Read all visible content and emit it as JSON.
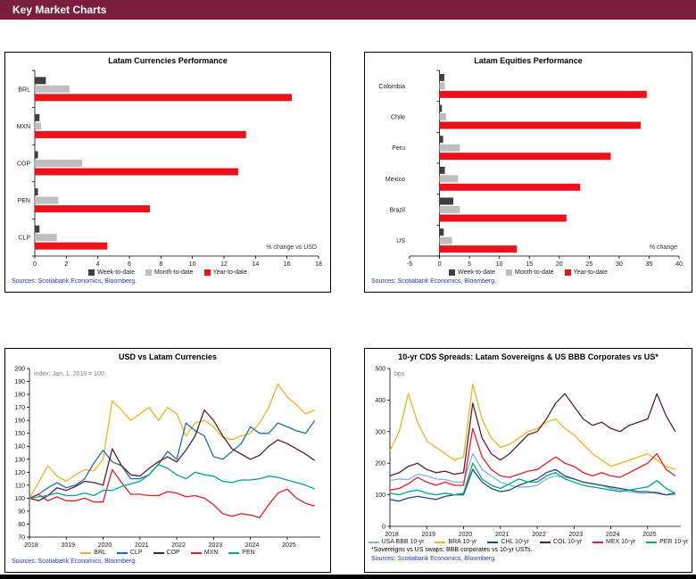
{
  "page": {
    "header_title": "Key Market Charts"
  },
  "colors": {
    "header_bg": "#7a1f3d",
    "sources_text": "#2638b8",
    "bar_red": "#ec111a",
    "bar_dark_gray": "#404040",
    "bar_light_gray": "#bfbfbf"
  },
  "chart_data": [
    {
      "type": "bar",
      "orientation": "horizontal",
      "title": "Latam Currencies Performance",
      "axis_note": "% change vs USD",
      "sources": "Sources: Scotiabank Economics, Bloomberg.",
      "categories": [
        "BRL",
        "MXN",
        "COP",
        "PEN",
        "CLP"
      ],
      "xlim": [
        0,
        18
      ],
      "xticks": [
        0,
        2,
        4,
        6,
        8,
        10,
        12,
        14,
        16,
        18
      ],
      "margin_left": 30,
      "series": [
        {
          "name": "Week-to-date",
          "color": "#404040",
          "values": [
            0.7,
            0.3,
            0.2,
            0.2,
            0.3
          ]
        },
        {
          "name": "Month-to-date",
          "color": "#bfbfbf",
          "values": [
            2.2,
            0.4,
            3.0,
            1.5,
            1.4
          ]
        },
        {
          "name": "Year-to-date",
          "color": "#ec111a",
          "values": [
            16.3,
            13.4,
            12.9,
            7.3,
            4.6
          ]
        }
      ]
    },
    {
      "type": "bar",
      "orientation": "horizontal",
      "title": "Latam Equities Performance",
      "axis_note": "% change",
      "sources": "Sources: Scotiabank Economics, Bloomberg.",
      "categories": [
        "Colombia",
        "Chile",
        "Peru",
        "Mexico",
        "Brazil",
        "US"
      ],
      "xlim": [
        -5,
        40
      ],
      "xticks": [
        -5,
        0,
        5,
        10,
        15,
        20,
        25,
        30,
        35,
        40
      ],
      "margin_left": 46,
      "series": [
        {
          "name": "Week-to-date",
          "color": "#404040",
          "values": [
            0.8,
            0.4,
            0.6,
            0.9,
            2.3,
            0.7
          ]
        },
        {
          "name": "Month-to-date",
          "color": "#bfbfbf",
          "values": [
            0.9,
            1.1,
            3.4,
            3.1,
            3.4,
            2.1
          ]
        },
        {
          "name": "Year-to-date",
          "color": "#ec111a",
          "values": [
            34.6,
            33.6,
            28.6,
            23.5,
            21.2,
            12.9
          ]
        }
      ]
    },
    {
      "type": "line",
      "title": "USD vs Latam Currencies",
      "unit_note": "index, Jan. 1, 2018 = 100",
      "sources": "Sources: Scotiabank Economics, Bloomberg.",
      "x_start": 2018,
      "x_step": 0.25,
      "xlim": [
        2018,
        2025.9
      ],
      "xticks": [
        2018,
        2019,
        2020,
        2021,
        2022,
        2023,
        2024,
        2025
      ],
      "ylim": [
        70,
        200
      ],
      "yticks": [
        70,
        80,
        90,
        100,
        110,
        120,
        130,
        140,
        150,
        160,
        170,
        180,
        190,
        200
      ],
      "series": [
        {
          "name": "BRL",
          "color": "#f0b41e",
          "values": [
            100,
            112,
            125,
            117,
            113,
            118,
            122,
            121,
            130,
            175,
            168,
            160,
            165,
            170,
            160,
            170,
            165,
            148,
            158,
            160,
            155,
            147,
            145,
            148,
            150,
            158,
            170,
            188,
            178,
            172,
            165,
            168
          ]
        },
        {
          "name": "CLP",
          "color": "#1f6fa6",
          "values": [
            100,
            103,
            108,
            112,
            108,
            110,
            115,
            127,
            137,
            128,
            125,
            115,
            115,
            118,
            126,
            136,
            130,
            158,
            152,
            148,
            132,
            130,
            136,
            142,
            155,
            150,
            150,
            158,
            155,
            152,
            150,
            160
          ]
        },
        {
          "name": "COP",
          "color": "#5a1f2f",
          "values": [
            100,
            98,
            102,
            108,
            106,
            109,
            113,
            112,
            110,
            138,
            125,
            118,
            117,
            123,
            128,
            132,
            128,
            137,
            148,
            168,
            160,
            148,
            138,
            134,
            130,
            133,
            140,
            145,
            142,
            138,
            134,
            129
          ]
        },
        {
          "name": "MXN",
          "color": "#ec1c24",
          "values": [
            100,
            103,
            98,
            101,
            98,
            98,
            100,
            97,
            97,
            122,
            112,
            103,
            103,
            102,
            102,
            105,
            104,
            101,
            102,
            100,
            95,
            88,
            86,
            88,
            87,
            85,
            95,
            104,
            107,
            100,
            96,
            94
          ]
        },
        {
          "name": "PEN",
          "color": "#00a886",
          "values": [
            100,
            101,
            102,
            104,
            102,
            102,
            104,
            102,
            106,
            106,
            109,
            111,
            113,
            118,
            126,
            123,
            118,
            115,
            120,
            118,
            117,
            113,
            112,
            114,
            114,
            115,
            117,
            116,
            114,
            112,
            110,
            107
          ]
        }
      ]
    },
    {
      "type": "line",
      "title": "10-yr CDS Spreads: Latam Sovereigns & US BBB Corporates vs US*",
      "unit_note": "bps",
      "footnote": "*Sovereigns vs US swaps; BBB corporates vs 10-yr USTs.",
      "sources": "Sources: Scotiabank Economics, Bloomberg.",
      "x_start": 2018,
      "x_step": 0.25,
      "xlim": [
        2018,
        2025.9
      ],
      "xticks": [
        2018,
        2019,
        2020,
        2021,
        2022,
        2023,
        2024,
        2025
      ],
      "ylim": [
        0,
        500
      ],
      "yticks": [
        0,
        100,
        200,
        300,
        400,
        500
      ],
      "series": [
        {
          "name": "USA BBB 10-yr",
          "color": "#7fb2de",
          "values": [
            145,
            150,
            148,
            165,
            160,
            150,
            148,
            140,
            140,
            230,
            180,
            160,
            140,
            130,
            125,
            125,
            130,
            150,
            160,
            155,
            150,
            140,
            135,
            130,
            120,
            115,
            110,
            105,
            105,
            110,
            100,
            100
          ]
        },
        {
          "name": "BRA 10-yr",
          "color": "#f0b41e",
          "values": [
            240,
            300,
            420,
            330,
            270,
            250,
            230,
            210,
            220,
            450,
            340,
            280,
            250,
            260,
            280,
            300,
            310,
            330,
            340,
            310,
            290,
            260,
            230,
            210,
            190,
            200,
            210,
            220,
            230,
            210,
            190,
            180
          ]
        },
        {
          "name": "CHL 10-yr",
          "color": "#1f4e79",
          "values": [
            85,
            80,
            90,
            95,
            90,
            85,
            95,
            100,
            100,
            180,
            140,
            120,
            110,
            115,
            130,
            140,
            150,
            170,
            180,
            160,
            150,
            140,
            135,
            130,
            125,
            120,
            115,
            110,
            110,
            105,
            100,
            105
          ]
        },
        {
          "name": "COL 10-yr",
          "color": "#5a1f2f",
          "values": [
            160,
            170,
            190,
            200,
            180,
            170,
            175,
            165,
            170,
            390,
            280,
            230,
            210,
            230,
            260,
            290,
            300,
            340,
            390,
            420,
            380,
            340,
            320,
            330,
            310,
            300,
            320,
            330,
            340,
            420,
            350,
            300
          ]
        },
        {
          "name": "MEX 10-yr",
          "color": "#ec1c24",
          "values": [
            115,
            120,
            135,
            155,
            140,
            130,
            140,
            130,
            130,
            310,
            220,
            180,
            160,
            155,
            165,
            175,
            180,
            200,
            220,
            200,
            190,
            170,
            160,
            170,
            160,
            155,
            170,
            185,
            200,
            230,
            180,
            160
          ]
        },
        {
          "name": "PER 10-yr",
          "color": "#00a886",
          "values": [
            105,
            100,
            110,
            115,
            105,
            100,
            105,
            100,
            105,
            200,
            150,
            130,
            120,
            135,
            150,
            140,
            140,
            160,
            170,
            150,
            140,
            130,
            125,
            120,
            115,
            110,
            115,
            120,
            125,
            145,
            120,
            105
          ]
        }
      ]
    }
  ]
}
